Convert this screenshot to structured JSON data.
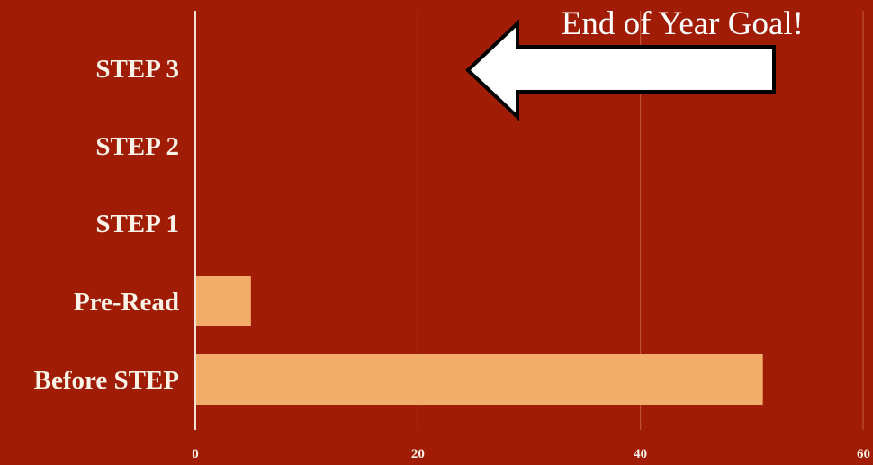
{
  "chart_data": {
    "type": "bar",
    "orientation": "horizontal",
    "categories": [
      "STEP 3",
      "STEP 2",
      "STEP 1",
      "Pre-Read",
      "Before STEP"
    ],
    "values": [
      0,
      0,
      0,
      5,
      51
    ],
    "xlim": [
      0,
      60
    ],
    "xticks": [
      0,
      20,
      40,
      60
    ],
    "xtick_labels": [
      "0",
      "20",
      "40",
      "60"
    ],
    "grid": "vertical",
    "annotation": {
      "text": "End of Year Goal!",
      "shape": "arrow-left",
      "points_to": "STEP 3"
    }
  },
  "colors": {
    "background": "#a01c04",
    "bar": "#f2ad6a",
    "text": "#fbf3e8",
    "gridline": "#c65a44",
    "axis": "#f2e2d6",
    "arrow_fill": "#ffffff",
    "arrow_stroke": "#000000"
  }
}
